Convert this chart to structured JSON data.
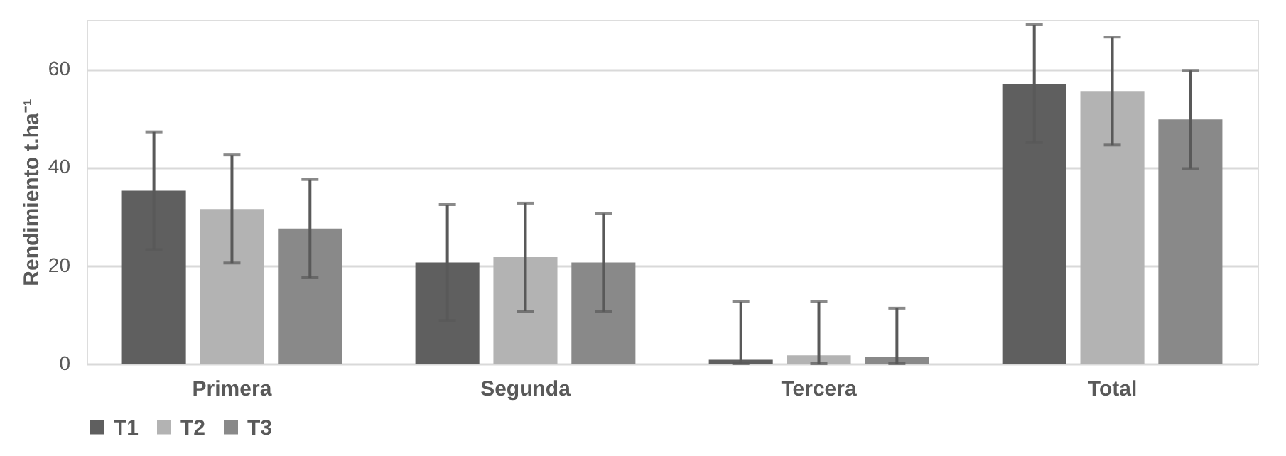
{
  "chart_data": {
    "type": "bar",
    "ylabel": "Rendimiento t.ha⁻¹",
    "categories": [
      "Primera",
      "Segunda",
      "Tercera",
      "Total"
    ],
    "series": [
      {
        "name": "T1",
        "color": "#5f5f5f",
        "values": [
          35.2,
          20.6,
          0.8,
          57.0
        ],
        "errors": [
          12,
          11.8,
          [
            0,
            12.6
          ],
          12
        ]
      },
      {
        "name": "T2",
        "color": "#b3b3b3",
        "values": [
          31.5,
          21.7,
          1.7,
          55.5
        ],
        "errors": [
          11,
          11,
          [
            0,
            12.6
          ],
          11
        ]
      },
      {
        "name": "T3",
        "color": "#898989",
        "values": [
          27.5,
          20.6,
          1.3,
          49.7
        ],
        "errors": [
          10,
          10,
          [
            0,
            11.3
          ],
          10
        ]
      }
    ],
    "ylim": [
      0,
      70
    ],
    "yticks": [
      0,
      20,
      40,
      60
    ],
    "grid": "y",
    "legend": "bottom"
  }
}
